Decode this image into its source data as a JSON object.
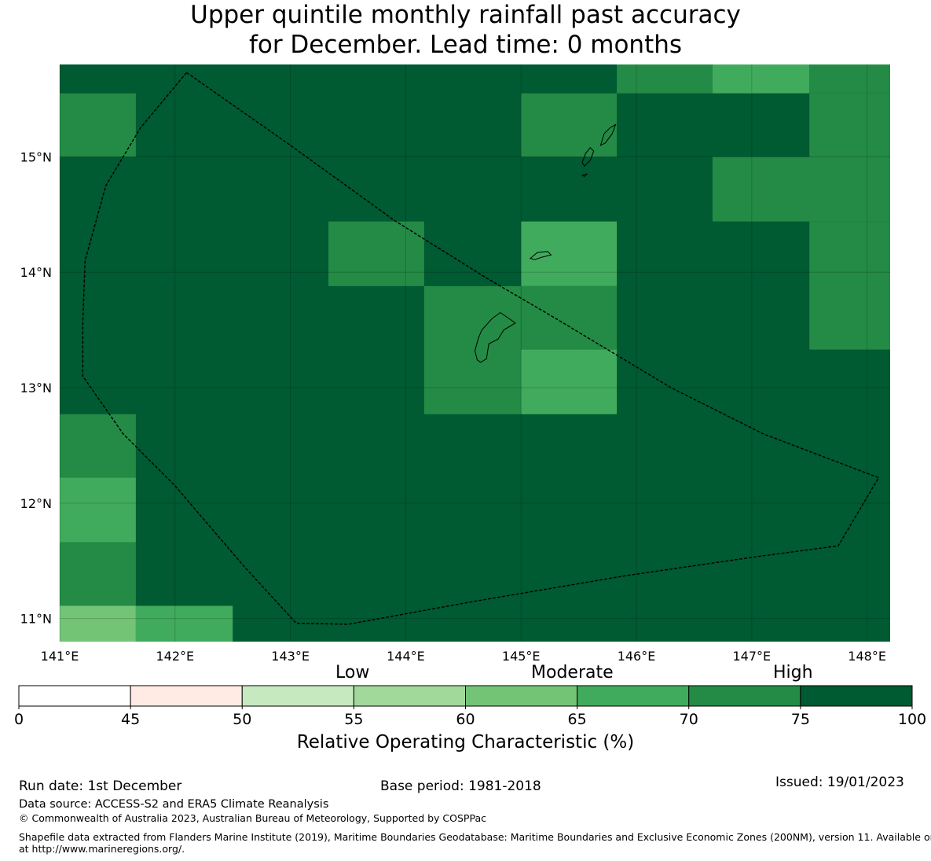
{
  "title": {
    "line1": "Upper quintile monthly rainfall past accuracy",
    "line2": "for December. Lead time: 0 months"
  },
  "map": {
    "lon_range": [
      141.0,
      148.2
    ],
    "lat_range": [
      10.8,
      15.8
    ],
    "x_ticks": [
      141,
      142,
      143,
      144,
      145,
      146,
      147,
      148
    ],
    "x_tick_labels": [
      "141°E",
      "142°E",
      "143°E",
      "144°E",
      "145°E",
      "146°E",
      "147°E",
      "148°E"
    ],
    "y_ticks": [
      11,
      12,
      13,
      14,
      15
    ],
    "y_tick_labels": [
      "11°N",
      "12°N",
      "13°N",
      "14°N",
      "15°N"
    ],
    "grid_note": "ROC score cells, background value 75-100 (High)",
    "cells": [
      {
        "lon": [
          141.0,
          141.66
        ],
        "lat": [
          15.0,
          15.55
        ],
        "value": 72
      },
      {
        "lon": [
          145.0,
          145.83
        ],
        "lat": [
          15.0,
          15.55
        ],
        "value": 72
      },
      {
        "lon": [
          145.83,
          146.66
        ],
        "lat": [
          15.55,
          15.8
        ],
        "value": 72
      },
      {
        "lon": [
          146.66,
          147.5
        ],
        "lat": [
          15.55,
          15.8
        ],
        "value": 67
      },
      {
        "lon": [
          147.5,
          148.2
        ],
        "lat": [
          15.55,
          15.8
        ],
        "value": 72
      },
      {
        "lon": [
          147.5,
          148.2
        ],
        "lat": [
          15.0,
          15.55
        ],
        "value": 72
      },
      {
        "lon": [
          146.66,
          148.2
        ],
        "lat": [
          14.44,
          15.0
        ],
        "value": 72
      },
      {
        "lon": [
          147.5,
          148.2
        ],
        "lat": [
          13.33,
          14.44
        ],
        "value": 72
      },
      {
        "lon": [
          143.33,
          144.16
        ],
        "lat": [
          13.88,
          14.44
        ],
        "value": 72
      },
      {
        "lon": [
          145.0,
          145.83
        ],
        "lat": [
          13.88,
          14.44
        ],
        "value": 67
      },
      {
        "lon": [
          144.16,
          145.0
        ],
        "lat": [
          12.77,
          13.88
        ],
        "value": 72
      },
      {
        "lon": [
          145.0,
          145.83
        ],
        "lat": [
          13.33,
          13.88
        ],
        "value": 72
      },
      {
        "lon": [
          145.0,
          145.83
        ],
        "lat": [
          12.77,
          13.33
        ],
        "value": 67
      },
      {
        "lon": [
          141.0,
          141.66
        ],
        "lat": [
          12.22,
          12.77
        ],
        "value": 72
      },
      {
        "lon": [
          141.0,
          141.66
        ],
        "lat": [
          11.66,
          12.22
        ],
        "value": 67
      },
      {
        "lon": [
          141.0,
          141.66
        ],
        "lat": [
          11.11,
          11.66
        ],
        "value": 72
      },
      {
        "lon": [
          141.0,
          141.66
        ],
        "lat": [
          10.8,
          11.11
        ],
        "value": 62
      },
      {
        "lon": [
          141.66,
          142.5
        ],
        "lat": [
          10.8,
          11.11
        ],
        "value": 67
      }
    ],
    "eez_boundary": [
      [
        142.1,
        15.73
      ],
      [
        143.0,
        15.1
      ],
      [
        143.9,
        14.45
      ],
      [
        144.7,
        13.95
      ],
      [
        145.3,
        13.6
      ],
      [
        146.3,
        13.0
      ],
      [
        147.1,
        12.6
      ],
      [
        148.1,
        12.22
      ],
      [
        147.75,
        11.63
      ],
      [
        147.0,
        11.53
      ],
      [
        145.9,
        11.37
      ],
      [
        144.6,
        11.15
      ],
      [
        143.5,
        10.95
      ],
      [
        143.05,
        10.96
      ],
      [
        142.6,
        11.45
      ],
      [
        142.0,
        12.15
      ],
      [
        141.55,
        12.6
      ],
      [
        141.2,
        13.1
      ],
      [
        141.2,
        13.55
      ],
      [
        141.22,
        14.1
      ],
      [
        141.4,
        14.75
      ],
      [
        141.7,
        15.25
      ],
      [
        142.1,
        15.73
      ]
    ],
    "islands": [
      {
        "name": "Guam",
        "points": [
          [
            144.62,
            13.24
          ],
          [
            144.6,
            13.32
          ],
          [
            144.63,
            13.43
          ],
          [
            144.66,
            13.5
          ],
          [
            144.75,
            13.6
          ],
          [
            144.82,
            13.65
          ],
          [
            144.88,
            13.61
          ],
          [
            144.95,
            13.56
          ],
          [
            144.85,
            13.5
          ],
          [
            144.8,
            13.42
          ],
          [
            144.72,
            13.38
          ],
          [
            144.7,
            13.25
          ],
          [
            144.65,
            13.22
          ],
          [
            144.62,
            13.24
          ]
        ]
      },
      {
        "name": "Rota",
        "points": [
          [
            145.08,
            14.12
          ],
          [
            145.14,
            14.17
          ],
          [
            145.23,
            14.18
          ],
          [
            145.26,
            14.15
          ],
          [
            145.18,
            14.13
          ],
          [
            145.12,
            14.11
          ],
          [
            145.08,
            14.12
          ]
        ]
      },
      {
        "name": "Tinian",
        "points": [
          [
            145.55,
            14.92
          ],
          [
            145.6,
            14.97
          ],
          [
            145.63,
            15.05
          ],
          [
            145.6,
            15.08
          ],
          [
            145.56,
            15.03
          ],
          [
            145.53,
            14.95
          ],
          [
            145.55,
            14.92
          ]
        ]
      },
      {
        "name": "Saipan",
        "points": [
          [
            145.69,
            15.1
          ],
          [
            145.72,
            15.2
          ],
          [
            145.77,
            15.25
          ],
          [
            145.82,
            15.28
          ],
          [
            145.79,
            15.2
          ],
          [
            145.73,
            15.12
          ],
          [
            145.69,
            15.1
          ]
        ]
      },
      {
        "name": "Aguijan",
        "points": [
          [
            145.53,
            14.84
          ],
          [
            145.57,
            14.85
          ],
          [
            145.55,
            14.83
          ],
          [
            145.53,
            14.84
          ]
        ]
      }
    ]
  },
  "colorbar": {
    "bounds": [
      0,
      45,
      50,
      55,
      60,
      65,
      70,
      75,
      100
    ],
    "colors": [
      "#ffffff",
      "#ffebe3",
      "#c7e9c0",
      "#a1d99b",
      "#74c476",
      "#41ab5d",
      "#238b45",
      "#005a32"
    ],
    "tick_labels": [
      "0",
      "45",
      "50",
      "55",
      "60",
      "65",
      "70",
      "75",
      "100"
    ],
    "categories": {
      "low": "Low",
      "moderate": "Moderate",
      "high": "High"
    },
    "title": "Relative Operating Characteristic (%)"
  },
  "footer": {
    "run_date": "Run date: 1st December",
    "base_period": "Base period: 1981-2018",
    "issued": "Issued: 19/01/2023",
    "data_source": "Data source: ACCESS-S2 and ERA5 Climate Reanalysis",
    "copyright": "© Commonwealth of Australia 2023, Australian Bureau of Meteorology, Supported by COSPPac",
    "shapefile_line1": "Shapefile data extracted from Flanders Marine Institute (2019), Maritime Boundaries Geodatabase: Maritime Boundaries and Exclusive Economic Zones (200NM), version 11. Available online",
    "shapefile_line2": "at http://www.marineregions.org/."
  }
}
